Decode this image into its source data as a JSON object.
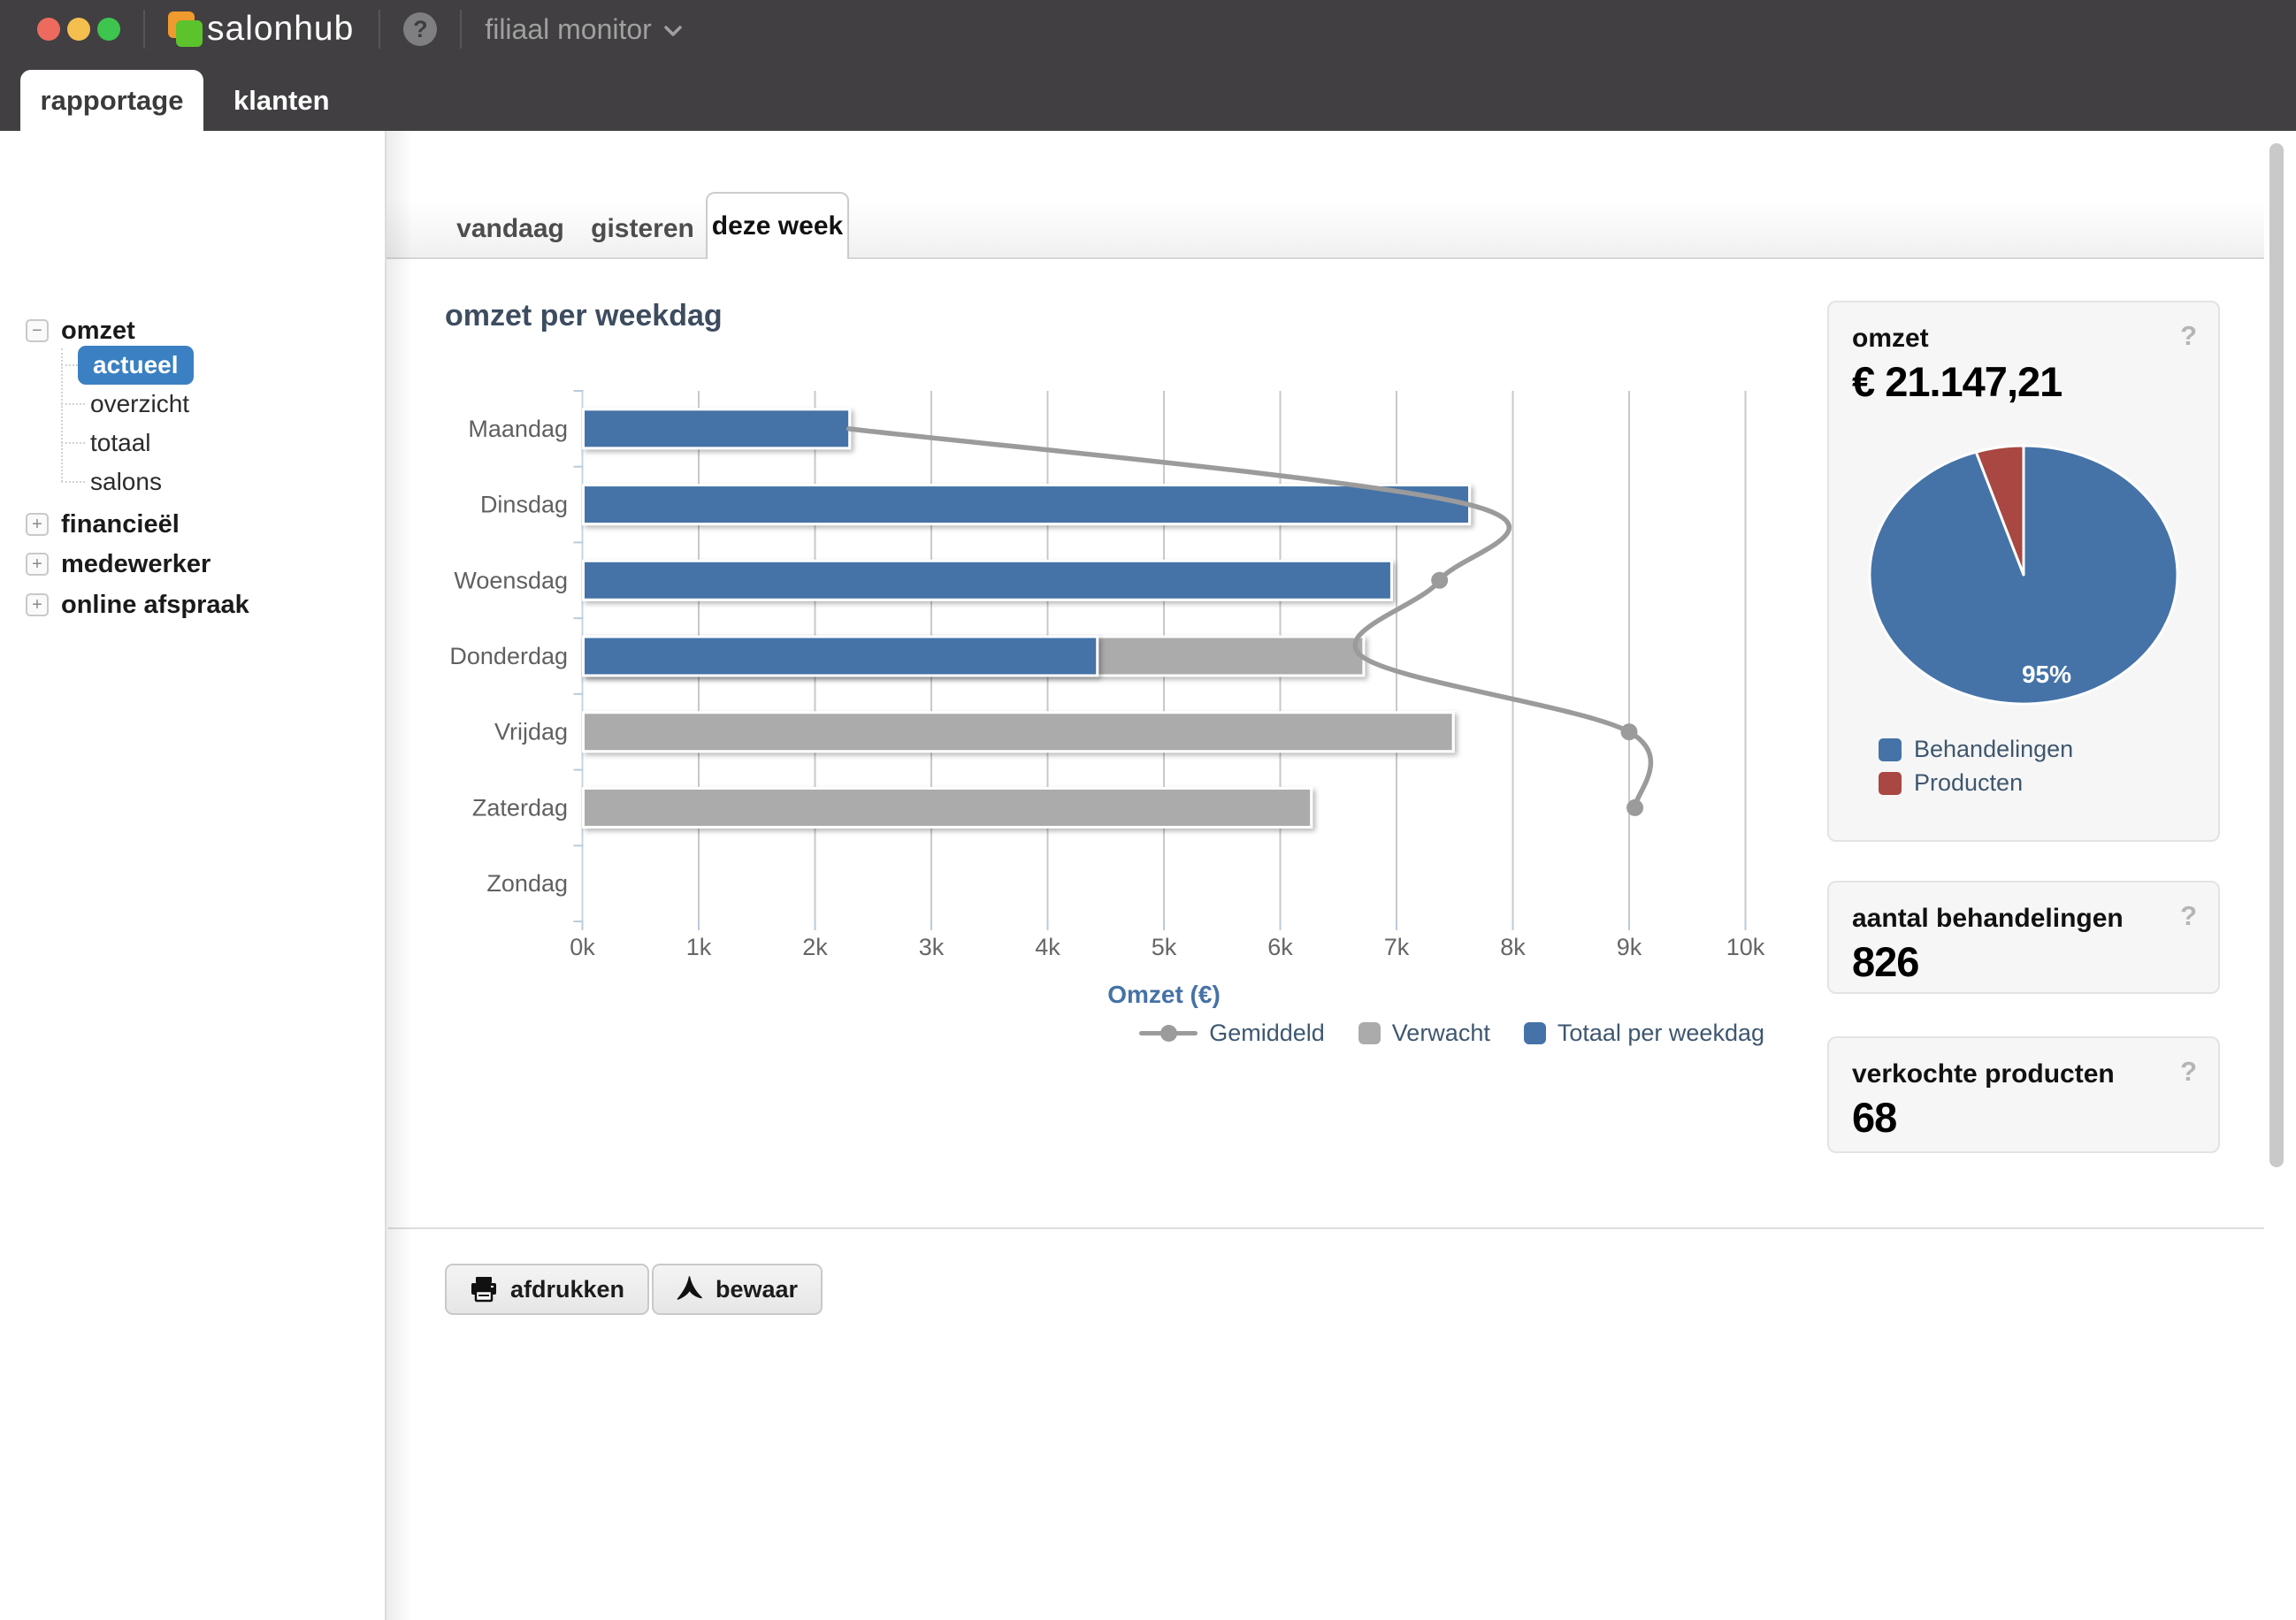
{
  "titlebar": {
    "app_name": "salonhub",
    "help_glyph": "?",
    "context_selector": "filiaal monitor"
  },
  "app_tabs": [
    {
      "label": "rapportage",
      "active": true
    },
    {
      "label": "klanten",
      "active": false
    }
  ],
  "sidebar": {
    "sections": [
      {
        "label": "omzet",
        "state": "expanded",
        "toggle_glyph": "−",
        "children": [
          {
            "label": "actueel",
            "selected": true
          },
          {
            "label": "overzicht",
            "selected": false
          },
          {
            "label": "totaal",
            "selected": false
          },
          {
            "label": "salons",
            "selected": false
          }
        ]
      },
      {
        "label": "financieël",
        "state": "collapsed",
        "toggle_glyph": "+"
      },
      {
        "label": "medewerker",
        "state": "collapsed",
        "toggle_glyph": "+"
      },
      {
        "label": "online afspraak",
        "state": "collapsed",
        "toggle_glyph": "+"
      }
    ]
  },
  "period_tabs": [
    {
      "label": "vandaag",
      "active": false
    },
    {
      "label": "gisteren",
      "active": false
    },
    {
      "label": "deze week",
      "active": true
    }
  ],
  "chart_data": [
    {
      "type": "bar",
      "orientation": "horizontal",
      "title": "omzet per weekdag",
      "categories": [
        "Maandag",
        "Dinsdag",
        "Woensdag",
        "Donderdag",
        "Vrijdag",
        "Zaterdag",
        "Zondag"
      ],
      "series": [
        {
          "name": "Totaal per weekdag",
          "type": "bar",
          "color": "#4573a7",
          "values": [
            2290,
            7620,
            6950,
            4420,
            0,
            0,
            0
          ]
        },
        {
          "name": "Verwacht",
          "type": "bar",
          "color": "#ababab",
          "values": [
            0,
            0,
            0,
            6710,
            7480,
            6260,
            0
          ]
        },
        {
          "name": "Gemiddeld",
          "type": "line",
          "color": "#9b9b9b",
          "values": [
            2290,
            7620,
            7370,
            6700,
            9000,
            9050,
            null
          ],
          "markers": [
            false,
            false,
            true,
            false,
            true,
            true,
            false
          ]
        }
      ],
      "xlabel": "Omzet (€)",
      "xlim": [
        0,
        10000
      ],
      "tick_labels": [
        "0k",
        "1k",
        "2k",
        "3k",
        "4k",
        "5k",
        "6k",
        "7k",
        "8k",
        "9k",
        "10k"
      ],
      "legend_order": [
        2,
        1,
        0
      ],
      "legend_position": "bottom-right",
      "grid": true
    },
    {
      "type": "pie",
      "title": "omzet",
      "total": "€ 21.147,21",
      "slices": [
        {
          "label": "Behandelingen",
          "value": 95,
          "color": "#4573a7"
        },
        {
          "label": "Producten",
          "value": 5,
          "color": "#a94743"
        }
      ],
      "data_label": "95%",
      "legend_position": "bottom"
    }
  ],
  "cards": {
    "omzet": {
      "title": "omzet",
      "value": "€ 21.147,21",
      "help": "?"
    },
    "behandelingen": {
      "title": "aantal behandelingen",
      "value": "826",
      "help": "?"
    },
    "producten": {
      "title": "verkochte producten",
      "value": "68",
      "help": "?"
    }
  },
  "actions": [
    {
      "label": "afdrukken",
      "icon": "printer-icon"
    },
    {
      "label": "bewaar",
      "icon": "pdf-icon"
    }
  ]
}
